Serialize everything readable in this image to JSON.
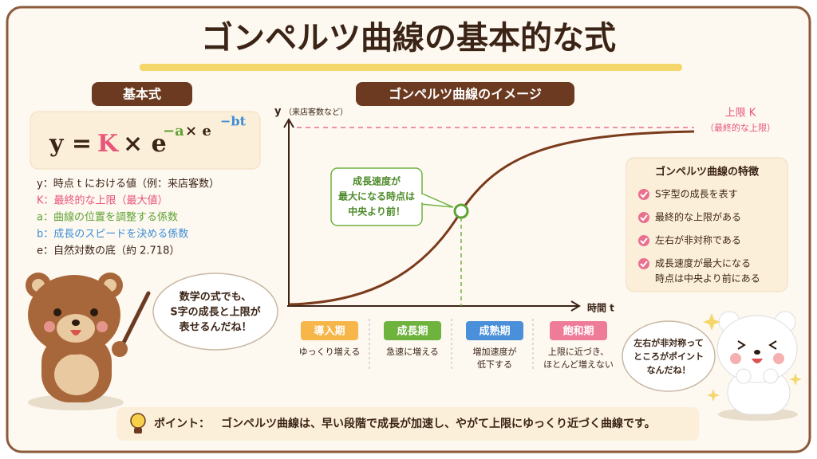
{
  "title": "ゴンペルツ曲線の基本的な式",
  "formula_section": {
    "label": "基本式",
    "formula": [
      "y =",
      "K",
      "× e",
      "−a",
      "× e",
      "−bt"
    ],
    "definitions": [
      "y：時点 t における値（例：来店客数）",
      "K：最終的な上限（最大値）",
      "a：曲線の位置を調整する係数",
      "b：成長のスピードを決める係数",
      "e：自然対数の底（約 2.718）"
    ]
  },
  "left_bear_speech": [
    "数学の式でも、",
    "S字の成長と上限が",
    "表せるんだね！"
  ],
  "chart_section": {
    "label": "ゴンペルツ曲線のイメージ",
    "y_axis": "y",
    "y_axis_note": "（来店客数など）",
    "x_axis": "時間 t",
    "upper_limit": "上限 K",
    "upper_limit_note": "（最終的な上限）",
    "callout": [
      "成長速度が",
      "最大になる時点は",
      "中央より前！"
    ],
    "phases": [
      {
        "name": "導入期",
        "description": [
          "ゆっくり増える"
        ]
      },
      {
        "name": "成長期",
        "description": [
          "急速に増える"
        ]
      },
      {
        "name": "成熟期",
        "description": [
          "増加速度が",
          "低下する"
        ]
      },
      {
        "name": "飽和期",
        "description": [
          "上限に近づき、",
          "ほとんど増えない"
        ]
      }
    ]
  },
  "features": {
    "title": "ゴンペルツ曲線の特徴",
    "items": [
      [
        "S字型の成長を表す"
      ],
      [
        "最終的な上限がある"
      ],
      [
        "左右が非対称である"
      ],
      [
        "成長速度が最大になる",
        "時点は中央より前にある"
      ]
    ]
  },
  "right_bear_speech": [
    "左右が非対称って",
    "ところがポイント",
    "なんだね！"
  ],
  "point": {
    "label": "ポイント：",
    "text": "ゴンペルツ曲線は、早い段階で成長が加速し、やがて上限にゆっくり近づく曲線です。"
  }
}
